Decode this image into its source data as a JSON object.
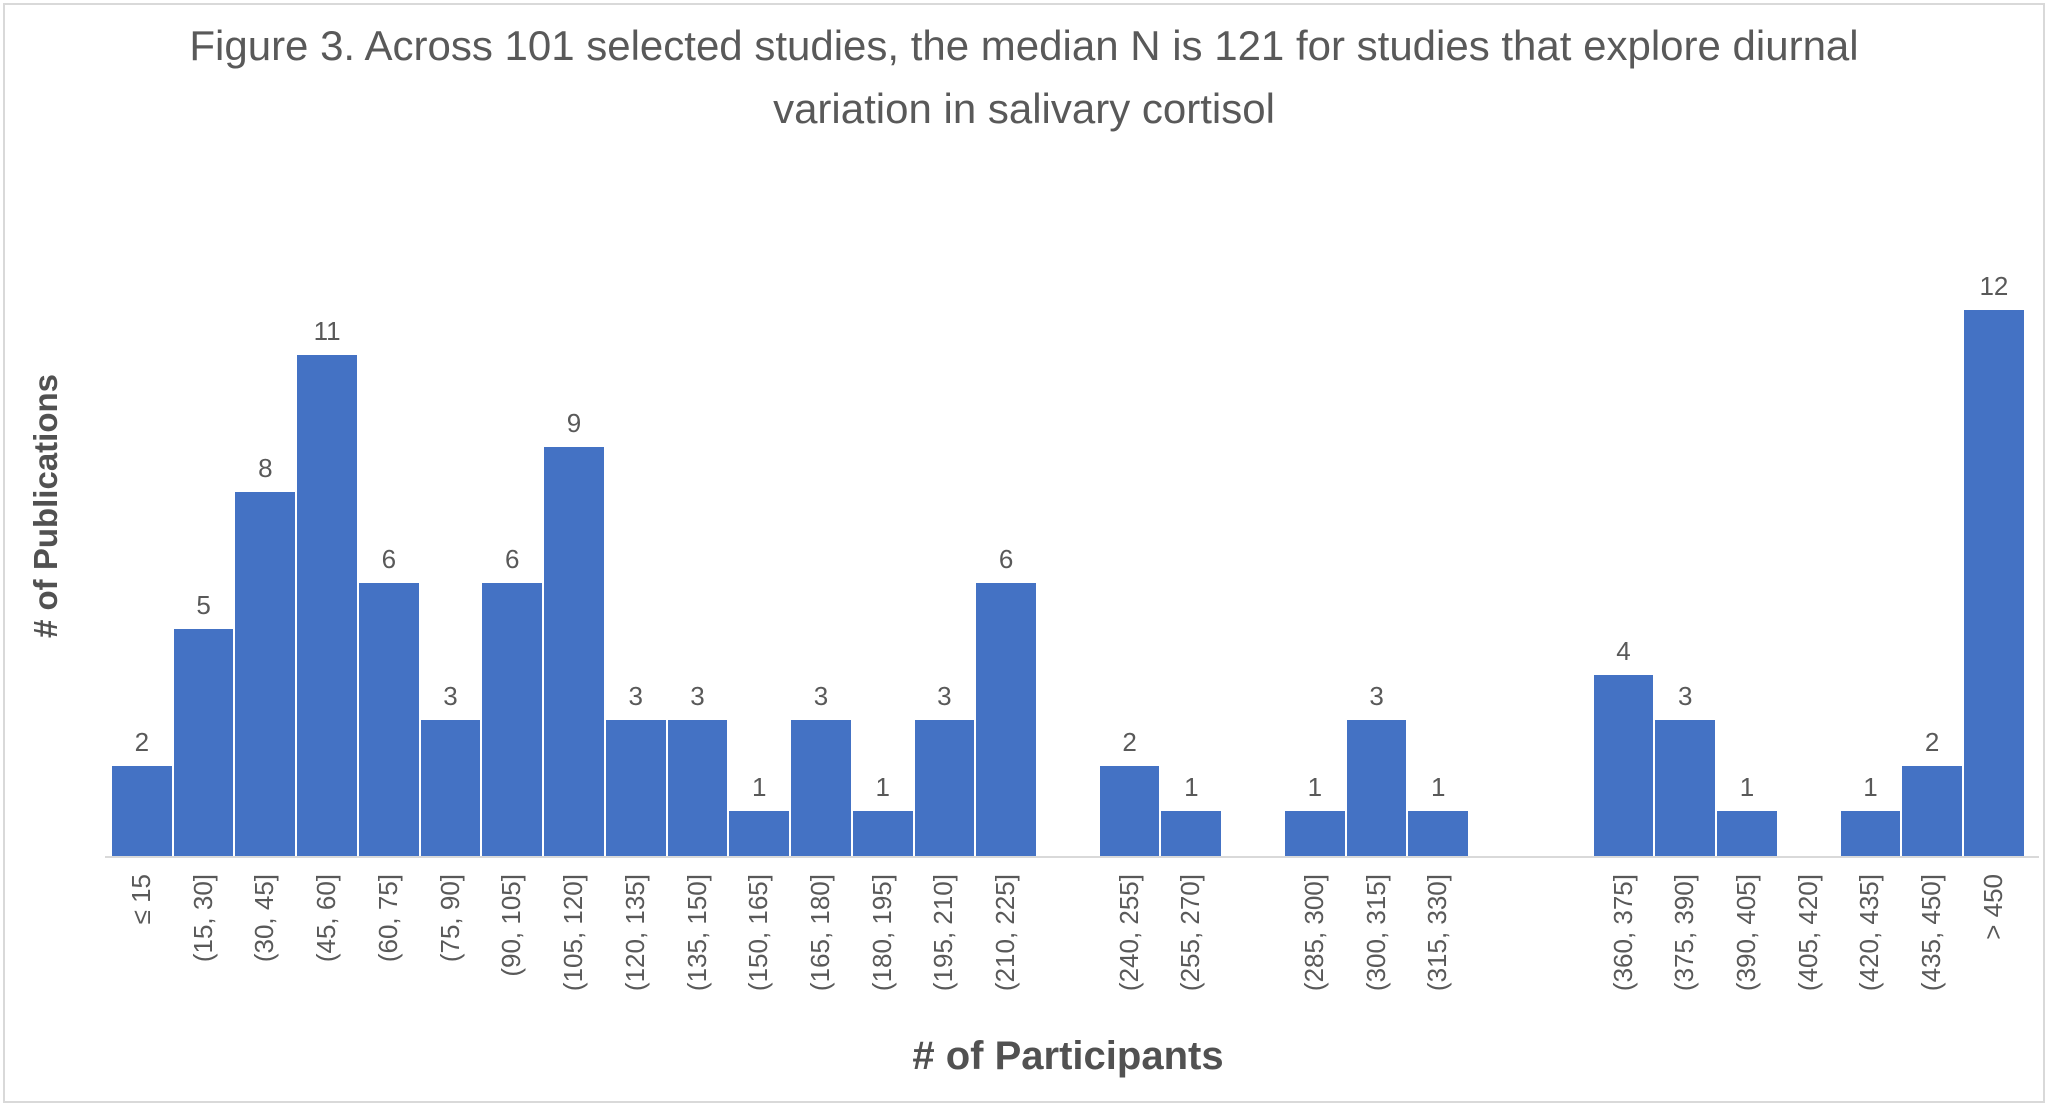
{
  "title": {
    "lines": [
      "Figure 3. Across 101 selected studies, the median N is 121 for studies that explore diurnal",
      "variation in salivary cortisol"
    ]
  },
  "y_axis": {
    "title": "# of Publications"
  },
  "x_axis": {
    "title": "# of Participants"
  },
  "colors": {
    "bar": "#4472c4",
    "data_label_text": "#595959",
    "tick_label_text": "#595959",
    "axis_title_text": "#515151",
    "title_text": "#595959",
    "axis_line": "#d9d9d9",
    "frame_border": "#d9d9d9",
    "background": "#ffffff"
  },
  "chart_data": {
    "type": "bar",
    "title": "Figure 3. Across 101 selected studies, the median N is 121 for studies that explore diurnal variation in salivary cortisol",
    "xlabel": "# of Participants",
    "ylabel": "# of Publications",
    "categories": [
      "≤ 15",
      "(15, 30]",
      "(30, 45]",
      "(45, 60]",
      "(60, 75]",
      "(75, 90]",
      "(90, 105]",
      "(105, 120]",
      "(120, 135]",
      "(135, 150]",
      "(150, 165]",
      "(165, 180]",
      "(180, 195]",
      "(195, 210]",
      "(210, 225]",
      "",
      "(240, 255]",
      "(255, 270]",
      "",
      "(285, 300]",
      "(300, 315]",
      "(315, 330]",
      "",
      "",
      "(360, 375]",
      "(375, 390]",
      "(390, 405]",
      "(405, 420]",
      "(420, 435]",
      "(435, 450]",
      "> 450"
    ],
    "values": [
      2,
      5,
      8,
      11,
      6,
      3,
      6,
      9,
      3,
      3,
      1,
      3,
      1,
      3,
      6,
      0,
      2,
      1,
      0,
      1,
      3,
      1,
      0,
      0,
      4,
      3,
      1,
      0,
      1,
      2,
      12
    ],
    "ylim": [
      0,
      13
    ],
    "grid": false,
    "legend": "none",
    "data_labels": "above bars, nonzero only",
    "total_publications": 101
  }
}
